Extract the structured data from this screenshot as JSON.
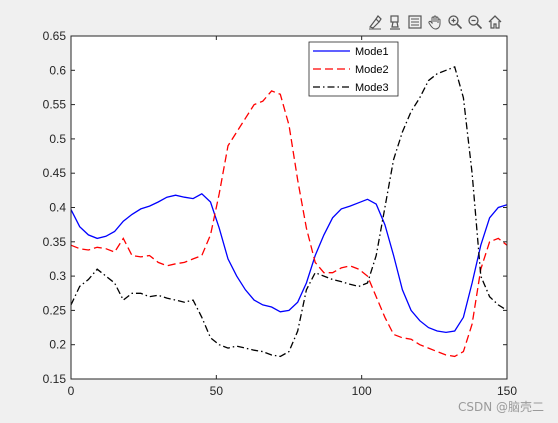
{
  "toolbar": {
    "icons": [
      "brush-icon",
      "data-tips-icon",
      "legend-icon",
      "pan-icon",
      "zoom-in-icon",
      "zoom-out-icon",
      "home-icon"
    ]
  },
  "watermark": "CSDN @脑壳二",
  "colors": {
    "figure_bg": "#f0f0f0",
    "axes_bg": "#ffffff",
    "mode1": "#0000ff",
    "mode2": "#ff0000",
    "mode3": "#000000"
  },
  "chart_data": {
    "type": "line",
    "title": "",
    "xlabel": "",
    "ylabel": "",
    "xlim": [
      0,
      150
    ],
    "ylim": [
      0.15,
      0.65
    ],
    "xticks": [
      "0",
      "50",
      "100",
      "150"
    ],
    "yticks": [
      "0.15",
      "0.2",
      "0.25",
      "0.3",
      "0.35",
      "0.4",
      "0.45",
      "0.5",
      "0.55",
      "0.6",
      "0.65"
    ],
    "legend_position": "top-center",
    "series": [
      {
        "name": "Mode1",
        "style": "solid",
        "color": "#0000ff",
        "x": [
          0,
          3,
          6,
          9,
          12,
          15,
          18,
          21,
          24,
          27,
          30,
          33,
          36,
          39,
          42,
          45,
          48,
          51,
          54,
          57,
          60,
          63,
          66,
          69,
          72,
          75,
          78,
          81,
          84,
          87,
          90,
          93,
          96,
          99,
          102,
          105,
          108,
          111,
          114,
          117,
          120,
          123,
          126,
          129,
          132,
          135,
          138,
          141,
          144,
          147,
          150
        ],
        "y": [
          0.397,
          0.372,
          0.36,
          0.355,
          0.358,
          0.365,
          0.38,
          0.39,
          0.398,
          0.402,
          0.408,
          0.415,
          0.418,
          0.415,
          0.413,
          0.42,
          0.408,
          0.37,
          0.325,
          0.3,
          0.28,
          0.265,
          0.258,
          0.255,
          0.248,
          0.25,
          0.262,
          0.29,
          0.33,
          0.36,
          0.385,
          0.398,
          0.402,
          0.407,
          0.412,
          0.405,
          0.375,
          0.33,
          0.28,
          0.25,
          0.235,
          0.225,
          0.22,
          0.218,
          0.22,
          0.24,
          0.29,
          0.345,
          0.385,
          0.4,
          0.404
        ]
      },
      {
        "name": "Mode2",
        "style": "dashed",
        "color": "#ff0000",
        "x": [
          0,
          3,
          6,
          9,
          12,
          15,
          18,
          21,
          24,
          27,
          30,
          33,
          36,
          39,
          42,
          45,
          48,
          51,
          54,
          57,
          60,
          63,
          66,
          69,
          72,
          75,
          78,
          81,
          84,
          87,
          90,
          93,
          96,
          99,
          102,
          105,
          108,
          111,
          114,
          117,
          120,
          123,
          126,
          129,
          132,
          135,
          138,
          141,
          144,
          147,
          150
        ],
        "y": [
          0.345,
          0.34,
          0.338,
          0.342,
          0.34,
          0.335,
          0.355,
          0.33,
          0.328,
          0.33,
          0.32,
          0.315,
          0.318,
          0.32,
          0.325,
          0.33,
          0.36,
          0.42,
          0.49,
          0.51,
          0.53,
          0.55,
          0.555,
          0.57,
          0.565,
          0.52,
          0.44,
          0.37,
          0.32,
          0.305,
          0.305,
          0.312,
          0.315,
          0.31,
          0.3,
          0.27,
          0.24,
          0.215,
          0.21,
          0.208,
          0.2,
          0.195,
          0.19,
          0.185,
          0.183,
          0.19,
          0.23,
          0.31,
          0.35,
          0.355,
          0.345
        ]
      },
      {
        "name": "Mode3",
        "style": "dash-dot",
        "color": "#000000",
        "x": [
          0,
          3,
          6,
          9,
          12,
          15,
          18,
          21,
          24,
          27,
          30,
          33,
          36,
          39,
          42,
          45,
          48,
          51,
          54,
          57,
          60,
          63,
          66,
          69,
          72,
          75,
          78,
          81,
          84,
          87,
          90,
          93,
          96,
          99,
          102,
          105,
          108,
          111,
          114,
          117,
          120,
          123,
          126,
          129,
          132,
          135,
          138,
          141,
          144,
          147,
          150
        ],
        "y": [
          0.258,
          0.285,
          0.295,
          0.31,
          0.3,
          0.29,
          0.265,
          0.275,
          0.275,
          0.27,
          0.272,
          0.268,
          0.265,
          0.262,
          0.265,
          0.24,
          0.21,
          0.2,
          0.195,
          0.198,
          0.195,
          0.192,
          0.19,
          0.185,
          0.183,
          0.19,
          0.22,
          0.28,
          0.305,
          0.3,
          0.295,
          0.292,
          0.288,
          0.285,
          0.29,
          0.33,
          0.4,
          0.47,
          0.51,
          0.54,
          0.56,
          0.585,
          0.595,
          0.6,
          0.605,
          0.56,
          0.45,
          0.3,
          0.27,
          0.258,
          0.25
        ]
      }
    ]
  }
}
